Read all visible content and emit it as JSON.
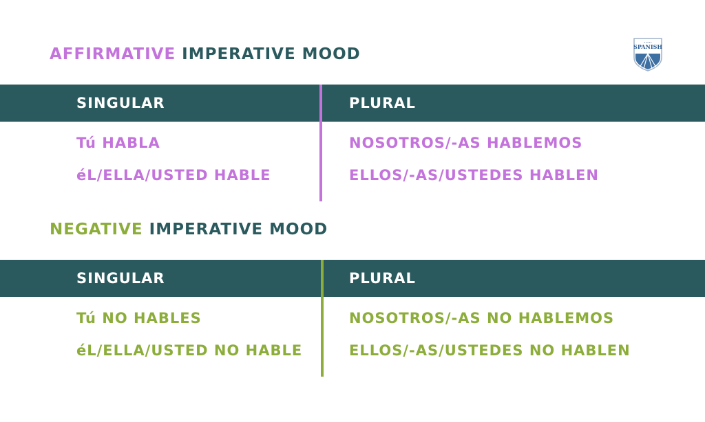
{
  "colors": {
    "purple": "#c373db",
    "green": "#8cad3a",
    "teal": "#2b5a5e",
    "white": "#ffffff"
  },
  "logo": {
    "text": "SPANISH",
    "icon": "shield-logo-icon"
  },
  "affirmative": {
    "title_accent": "AFFIRMATIVE",
    "title_rest": "IMPERATIVE MOOD",
    "header": {
      "singular": "SINGULAR",
      "plural": "PLURAL"
    },
    "singular": [
      "Tú HABLA",
      "éL/ELLA/USTED HABLE"
    ],
    "plural": [
      "NOSOTROS/-AS HABLEMOS",
      "ELLOS/-AS/USTEDES HABLEN"
    ]
  },
  "negative": {
    "title_accent": "NEGATIVE",
    "title_rest": "IMPERATIVE MOOD",
    "header": {
      "singular": "SINGULAR",
      "plural": "PLURAL"
    },
    "singular": [
      "Tú NO HABLES",
      "éL/ELLA/USTED NO HABLE"
    ],
    "plural": [
      "NOSOTROS/-AS NO HABLEMOS",
      "ELLOS/-AS/USTEDES NO HABLEN"
    ]
  }
}
